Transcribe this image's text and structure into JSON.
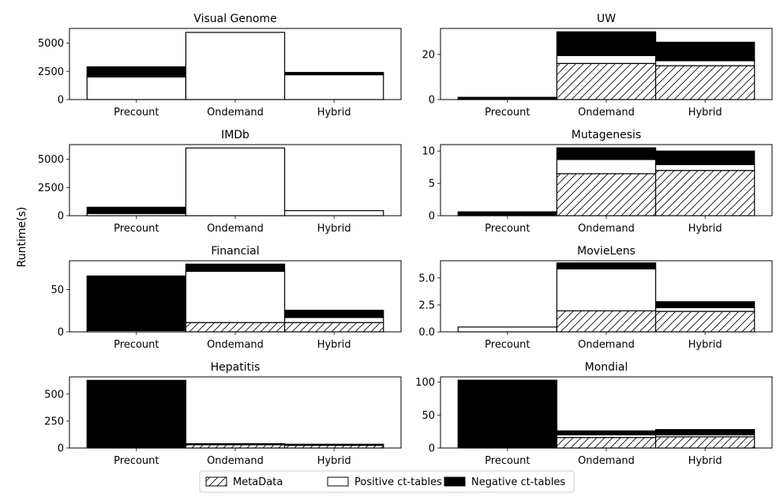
{
  "figure": {
    "ylabel": "Runtime(s)"
  },
  "legend": {
    "placement": "bottom-center",
    "items": [
      {
        "label": "MetaData",
        "style": "hatch"
      },
      {
        "label": "Positive ct-tables",
        "style": "white"
      },
      {
        "label": "Negative ct-tables",
        "style": "black"
      }
    ]
  },
  "colors": {
    "negative": "#000000",
    "positive": "#ffffff",
    "metadata_hatch": "#000000"
  },
  "chart_data": [
    {
      "type": "bar",
      "stacked": true,
      "title": "Visual Genome",
      "categories": [
        "Precount",
        "Ondemand",
        "Hybrid"
      ],
      "ylim": [
        0,
        6300
      ],
      "yticks": [
        "0",
        "2500",
        "5000"
      ],
      "series": [
        {
          "name": "MetaData",
          "values": [
            0,
            0,
            0
          ]
        },
        {
          "name": "Positive ct-tables",
          "values": [
            2000,
            5950,
            2200
          ]
        },
        {
          "name": "Negative ct-tables",
          "values": [
            900,
            0,
            200
          ]
        }
      ]
    },
    {
      "type": "bar",
      "stacked": true,
      "title": "UW",
      "categories": [
        "Precount",
        "Ondemand",
        "Hybrid"
      ],
      "ylim": [
        0,
        31.5
      ],
      "yticks": [
        "0",
        "20"
      ],
      "series": [
        {
          "name": "MetaData",
          "values": [
            0,
            16,
            15
          ]
        },
        {
          "name": "Positive ct-tables",
          "values": [
            0,
            3.5,
            2.2
          ]
        },
        {
          "name": "Negative ct-tables",
          "values": [
            1,
            10.5,
            8.2
          ]
        }
      ]
    },
    {
      "type": "bar",
      "stacked": true,
      "title": "IMDb",
      "categories": [
        "Precount",
        "Ondemand",
        "Hybrid"
      ],
      "ylim": [
        0,
        6300
      ],
      "yticks": [
        "0",
        "2500",
        "5000"
      ],
      "series": [
        {
          "name": "MetaData",
          "values": [
            0,
            0,
            0
          ]
        },
        {
          "name": "Positive ct-tables",
          "values": [
            200,
            6000,
            450
          ]
        },
        {
          "name": "Negative ct-tables",
          "values": [
            550,
            0,
            0
          ]
        }
      ]
    },
    {
      "type": "bar",
      "stacked": true,
      "title": "Mutagenesis",
      "categories": [
        "Precount",
        "Ondemand",
        "Hybrid"
      ],
      "ylim": [
        0,
        11
      ],
      "yticks": [
        "0",
        "5",
        "10"
      ],
      "series": [
        {
          "name": "MetaData",
          "values": [
            0,
            6.5,
            7
          ]
        },
        {
          "name": "Positive ct-tables",
          "values": [
            0,
            2.2,
            0.9
          ]
        },
        {
          "name": "Negative ct-tables",
          "values": [
            0.6,
            1.8,
            2.1
          ]
        }
      ]
    },
    {
      "type": "bar",
      "stacked": true,
      "title": "Financial",
      "categories": [
        "Precount",
        "Ondemand",
        "Hybrid"
      ],
      "ylim": [
        0,
        84
      ],
      "yticks": [
        "0",
        "50"
      ],
      "series": [
        {
          "name": "MetaData",
          "values": [
            0,
            11,
            11
          ]
        },
        {
          "name": "Positive ct-tables",
          "values": [
            1.5,
            60.5,
            6
          ]
        },
        {
          "name": "Negative ct-tables",
          "values": [
            64.5,
            8.5,
            8.5
          ]
        }
      ]
    },
    {
      "type": "bar",
      "stacked": true,
      "title": "MovieLens",
      "categories": [
        "Precount",
        "Ondemand",
        "Hybrid"
      ],
      "ylim": [
        0,
        6.6
      ],
      "yticks": [
        "0.0",
        "2.5",
        "5.0"
      ],
      "series": [
        {
          "name": "MetaData",
          "values": [
            0,
            1.95,
            1.9
          ]
        },
        {
          "name": "Positive ct-tables",
          "values": [
            0.45,
            3.9,
            0.35
          ]
        },
        {
          "name": "Negative ct-tables",
          "values": [
            0,
            0.55,
            0.55
          ]
        }
      ]
    },
    {
      "type": "bar",
      "stacked": true,
      "title": "Hepatitis",
      "categories": [
        "Precount",
        "Ondemand",
        "Hybrid"
      ],
      "ylim": [
        0,
        660
      ],
      "yticks": [
        "0",
        "250",
        "500"
      ],
      "series": [
        {
          "name": "MetaData",
          "values": [
            0,
            30,
            25
          ]
        },
        {
          "name": "Positive ct-tables",
          "values": [
            0,
            5,
            5
          ]
        },
        {
          "name": "Negative ct-tables",
          "values": [
            628,
            5,
            5
          ]
        }
      ]
    },
    {
      "type": "bar",
      "stacked": true,
      "title": "Mondial",
      "categories": [
        "Precount",
        "Ondemand",
        "Hybrid"
      ],
      "ylim": [
        0,
        108
      ],
      "yticks": [
        "0",
        "50",
        "100"
      ],
      "series": [
        {
          "name": "MetaData",
          "values": [
            0,
            16,
            17
          ]
        },
        {
          "name": "Positive ct-tables",
          "values": [
            0,
            4,
            3
          ]
        },
        {
          "name": "Negative ct-tables",
          "values": [
            103,
            6,
            8
          ]
        }
      ]
    }
  ]
}
